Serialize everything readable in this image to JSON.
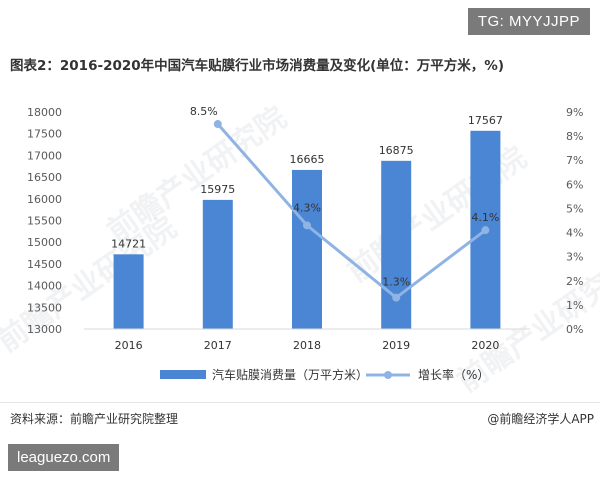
{
  "badge_top": "TG: MYYJJPP",
  "badge_bottom": "leaguezo.com",
  "title": "图表2：2016-2020年中国汽车贴膜行业市场消费量及变化(单位：万平方米，%)",
  "source_left": "资料来源：前瞻产业研究院整理",
  "source_right": "@前瞻经济学人APP",
  "watermark": "前瞻产业研究院",
  "colors": {
    "bar": "#4a86d4",
    "line": "#8fb4e3",
    "text": "#333333",
    "axis": "#595959"
  },
  "chart_data": {
    "type": "bar",
    "categories": [
      "2016",
      "2017",
      "2018",
      "2019",
      "2020"
    ],
    "series": [
      {
        "name": "汽车贴膜消费量（万平方米）",
        "type": "bar",
        "axis": "left",
        "values": [
          14721,
          15975,
          16665,
          16875,
          17567
        ],
        "labels": [
          "14721",
          "15975",
          "16665",
          "16875",
          "17567"
        ]
      },
      {
        "name": "增长率（%）",
        "type": "line",
        "axis": "right",
        "values": [
          null,
          8.5,
          4.3,
          1.3,
          4.1
        ],
        "labels": [
          "",
          "8.5%",
          "4.3%",
          "1.3%",
          "4.1%"
        ]
      }
    ],
    "ylim": [
      13000,
      18000
    ],
    "y_ticks": [
      "13000",
      "13500",
      "14000",
      "14500",
      "15000",
      "15500",
      "16000",
      "16500",
      "17000",
      "17500",
      "18000"
    ],
    "y2lim": [
      0,
      9
    ],
    "y2_ticks": [
      "0%",
      "1%",
      "2%",
      "3%",
      "4%",
      "5%",
      "6%",
      "7%",
      "8%",
      "9%"
    ],
    "legend_position": "bottom",
    "grid": false
  }
}
